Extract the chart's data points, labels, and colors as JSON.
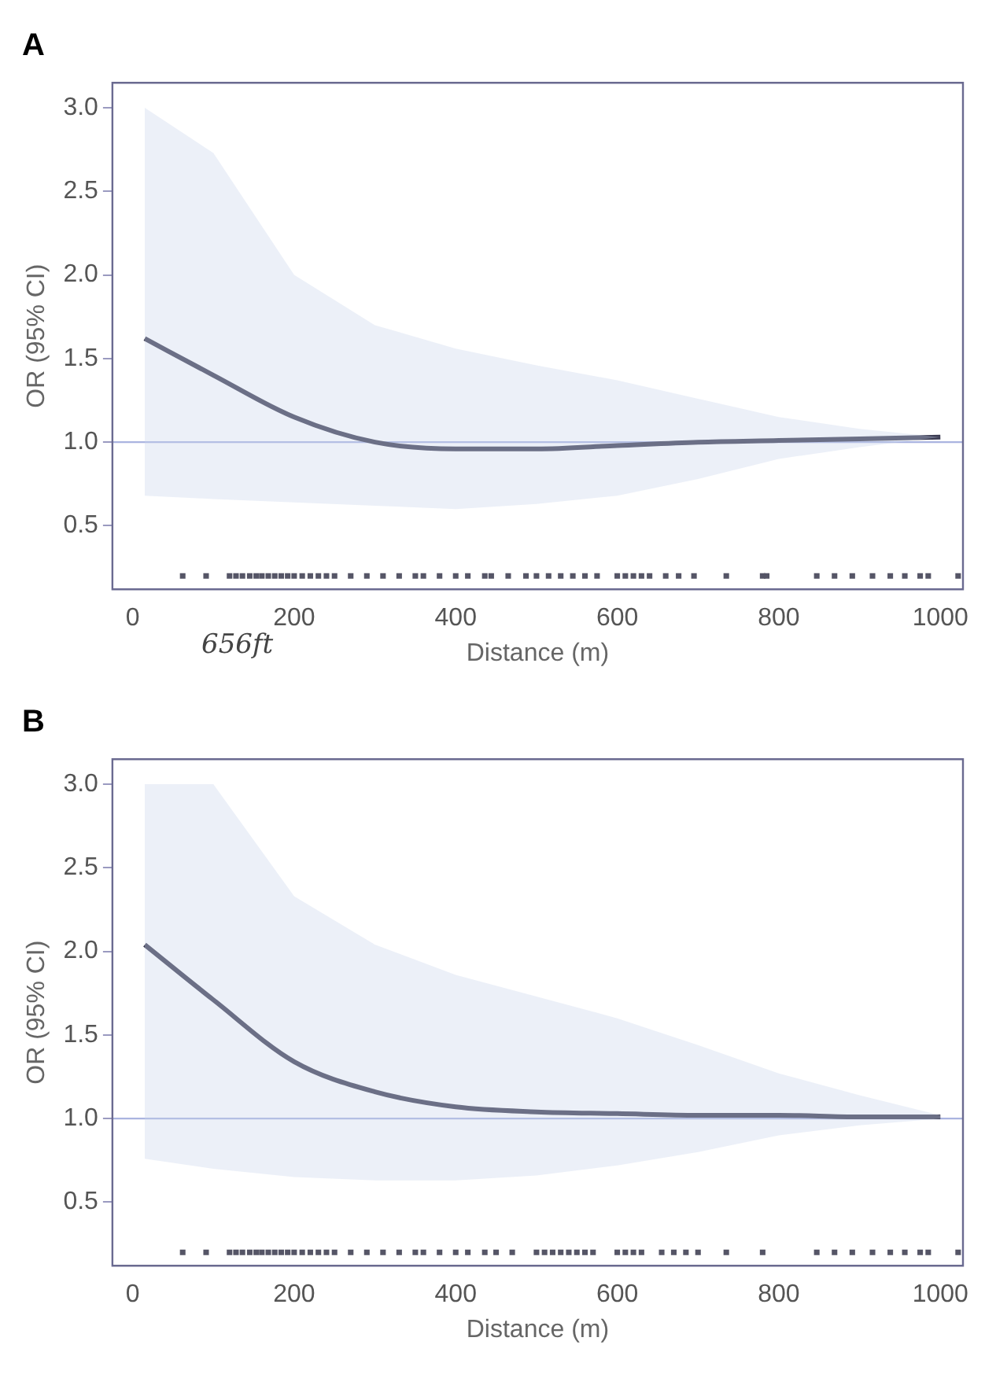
{
  "chart_data": [
    {
      "type": "line",
      "title": "A",
      "xlabel": "Distance (m)",
      "ylabel": "OR (95% CI)",
      "xlim": [
        -25,
        1028
      ],
      "ylim": [
        0.12,
        3.15
      ],
      "xticks": [
        0,
        200,
        400,
        600,
        800,
        1000
      ],
      "yticks": [
        0.5,
        {
          "value": 1,
          "label": "1.0"
        },
        1.5,
        {
          "value": 2,
          "label": "2.0"
        },
        2.5,
        {
          "value": 3,
          "label": "3.0"
        }
      ],
      "grid": false,
      "legend": false,
      "marker": "none",
      "line_style": "solid",
      "ref_lines": [
        {
          "axis": "y",
          "value": 1.0,
          "color": "#aab4e0"
        }
      ],
      "annotations": [
        "656ft"
      ],
      "series": [
        {
          "type": "line",
          "color": "#3a3a50",
          "x": [
            15,
            100,
            200,
            300,
            400,
            500,
            600,
            700,
            800,
            900,
            1000
          ],
          "values": [
            1.62,
            1.4,
            1.15,
            1.0,
            0.96,
            0.96,
            0.98,
            1.0,
            1.01,
            1.02,
            1.03
          ],
          "lower": [
            0.68,
            0.66,
            0.64,
            0.62,
            0.6,
            0.63,
            0.68,
            0.78,
            0.9,
            0.97,
            1.03
          ],
          "upper": [
            3.0,
            2.73,
            2.0,
            1.7,
            1.56,
            1.46,
            1.37,
            1.26,
            1.15,
            1.08,
            1.03
          ]
        },
        {
          "type": "scatter",
          "marker": "square",
          "color": "#555566",
          "x": [
            62,
            91,
            120,
            128,
            136,
            145,
            153,
            160,
            168,
            176,
            184,
            192,
            200,
            210,
            220,
            230,
            240,
            250,
            270,
            290,
            310,
            330,
            350,
            360,
            380,
            400,
            415,
            436,
            444,
            465,
            487,
            500,
            515,
            530,
            545,
            560,
            575,
            600,
            610,
            620,
            630,
            640,
            660,
            676,
            695,
            735,
            780,
            785,
            847,
            869,
            891,
            916,
            938,
            956,
            975,
            985,
            1022
          ],
          "values": [
            0.2,
            0.2,
            0.2,
            0.2,
            0.2,
            0.2,
            0.2,
            0.2,
            0.2,
            0.2,
            0.2,
            0.2,
            0.2,
            0.2,
            0.2,
            0.2,
            0.2,
            0.2,
            0.2,
            0.2,
            0.2,
            0.2,
            0.2,
            0.2,
            0.2,
            0.2,
            0.2,
            0.2,
            0.2,
            0.2,
            0.2,
            0.2,
            0.2,
            0.2,
            0.2,
            0.2,
            0.2,
            0.2,
            0.2,
            0.2,
            0.2,
            0.2,
            0.2,
            0.2,
            0.2,
            0.2,
            0.2,
            0.2,
            0.2,
            0.2,
            0.2,
            0.2,
            0.2,
            0.2,
            0.2,
            0.2,
            0.2
          ]
        }
      ]
    },
    {
      "type": "line",
      "title": "B",
      "xlabel": "Distance (m)",
      "ylabel": "OR (95% CI)",
      "xlim": [
        -25,
        1028
      ],
      "ylim": [
        0.12,
        3.15
      ],
      "xticks": [
        0,
        200,
        400,
        600,
        800,
        1000
      ],
      "yticks": [
        0.5,
        {
          "value": 1,
          "label": "1.0"
        },
        1.5,
        {
          "value": 2,
          "label": "2.0"
        },
        2.5,
        {
          "value": 3,
          "label": "3.0"
        }
      ],
      "grid": false,
      "legend": false,
      "marker": "none",
      "line_style": "solid",
      "ref_lines": [
        {
          "axis": "y",
          "value": 1.0,
          "color": "#aab4e0"
        }
      ],
      "series": [
        {
          "type": "line",
          "color": "#3a3a50",
          "x": [
            15,
            100,
            200,
            300,
            400,
            500,
            600,
            700,
            800,
            900,
            1000
          ],
          "values": [
            2.04,
            1.71,
            1.34,
            1.16,
            1.07,
            1.04,
            1.03,
            1.02,
            1.02,
            1.01,
            1.01
          ],
          "lower": [
            0.76,
            0.7,
            0.65,
            0.63,
            0.63,
            0.66,
            0.72,
            0.8,
            0.9,
            0.96,
            1.0
          ],
          "upper": [
            3.0,
            3.0,
            2.33,
            2.04,
            1.86,
            1.73,
            1.6,
            1.44,
            1.27,
            1.14,
            1.02
          ]
        },
        {
          "type": "scatter",
          "marker": "square",
          "color": "#555566",
          "x": [
            62,
            91,
            120,
            128,
            136,
            145,
            153,
            160,
            168,
            176,
            184,
            192,
            200,
            210,
            220,
            230,
            240,
            250,
            270,
            290,
            310,
            330,
            350,
            360,
            380,
            400,
            415,
            436,
            450,
            470,
            500,
            510,
            520,
            530,
            540,
            550,
            560,
            570,
            600,
            610,
            620,
            630,
            655,
            670,
            685,
            700,
            735,
            780,
            847,
            869,
            891,
            916,
            938,
            956,
            975,
            985,
            1022
          ],
          "values": [
            0.2,
            0.2,
            0.2,
            0.2,
            0.2,
            0.2,
            0.2,
            0.2,
            0.2,
            0.2,
            0.2,
            0.2,
            0.2,
            0.2,
            0.2,
            0.2,
            0.2,
            0.2,
            0.2,
            0.2,
            0.2,
            0.2,
            0.2,
            0.2,
            0.2,
            0.2,
            0.2,
            0.2,
            0.2,
            0.2,
            0.2,
            0.2,
            0.2,
            0.2,
            0.2,
            0.2,
            0.2,
            0.2,
            0.2,
            0.2,
            0.2,
            0.2,
            0.2,
            0.2,
            0.2,
            0.2,
            0.2,
            0.2,
            0.2,
            0.2,
            0.2,
            0.2,
            0.2,
            0.2,
            0.2,
            0.2,
            0.2
          ]
        }
      ]
    }
  ]
}
